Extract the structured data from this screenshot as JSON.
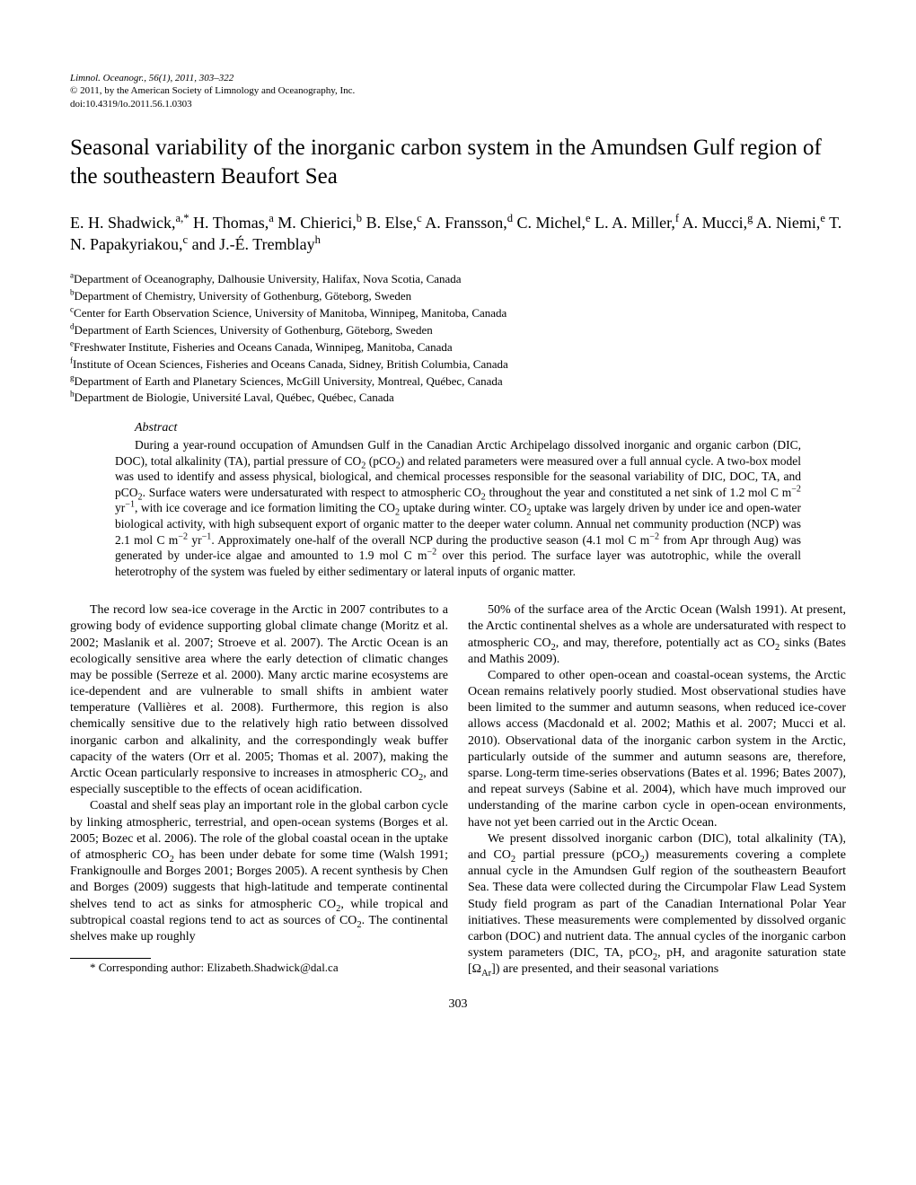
{
  "journal": {
    "citation": "Limnol. Oceanogr., 56(1), 2011, 303–322",
    "copyright": "© 2011, by the American Society of Limnology and Oceanography, Inc.",
    "doi": "doi:10.4319/lo.2011.56.1.0303"
  },
  "title": "Seasonal variability of the inorganic carbon system in the Amundsen Gulf region of the southeastern Beaufort Sea",
  "authors_html": "E. H. Shadwick,<span class='sup'>a,*</span> H. Thomas,<span class='sup'>a</span> M. Chierici,<span class='sup'>b</span> B. Else,<span class='sup'>c</span> A. Fransson,<span class='sup'>d</span> C. Michel,<span class='sup'>e</span> L. A. Miller,<span class='sup'>f</span> A. Mucci,<span class='sup'>g</span> A. Niemi,<span class='sup'>e</span> T. N. Papakyriakou,<span class='sup'>c</span> and J.-É. Tremblay<span class='sup'>h</span>",
  "affiliations": [
    {
      "sup": "a",
      "text": "Department of Oceanography, Dalhousie University, Halifax, Nova Scotia, Canada"
    },
    {
      "sup": "b",
      "text": "Department of Chemistry, University of Gothenburg, Göteborg, Sweden"
    },
    {
      "sup": "c",
      "text": "Center for Earth Observation Science, University of Manitoba, Winnipeg, Manitoba, Canada"
    },
    {
      "sup": "d",
      "text": "Department of Earth Sciences, University of Gothenburg, Göteborg, Sweden"
    },
    {
      "sup": "e",
      "text": "Freshwater Institute, Fisheries and Oceans Canada, Winnipeg, Manitoba, Canada"
    },
    {
      "sup": "f",
      "text": "Institute of Ocean Sciences, Fisheries and Oceans Canada, Sidney, British Columbia, Canada"
    },
    {
      "sup": "g",
      "text": "Department of Earth and Planetary Sciences, McGill University, Montreal, Québec, Canada"
    },
    {
      "sup": "h",
      "text": "Department de Biologie, Université Laval, Québec, Québec, Canada"
    }
  ],
  "abstract": {
    "heading": "Abstract",
    "body_html": "During a year-round occupation of Amundsen Gulf in the Canadian Arctic Archipelago dissolved inorganic and organic carbon (DIC, DOC), total alkalinity (TA), partial pressure of CO<span class='sub'>2</span> (pCO<span class='sub'>2</span>) and related parameters were measured over a full annual cycle. A two-box model was used to identify and assess physical, biological, and chemical processes responsible for the seasonal variability of DIC, DOC, TA, and pCO<span class='sub'>2</span>. Surface waters were undersaturated with respect to atmospheric CO<span class='sub'>2</span> throughout the year and constituted a net sink of 1.2 mol C m<span class='supm'>−2</span> yr<span class='supm'>−1</span>, with ice coverage and ice formation limiting the CO<span class='sub'>2</span> uptake during winter. CO<span class='sub'>2</span> uptake was largely driven by under ice and open-water biological activity, with high subsequent export of organic matter to the deeper water column. Annual net community production (NCP) was 2.1 mol C m<span class='supm'>−2</span> yr<span class='supm'>−1</span>. Approximately one-half of the overall NCP during the productive season (4.1 mol C m<span class='supm'>−2</span> from Apr through Aug) was generated by under-ice algae and amounted to 1.9 mol C m<span class='supm'>−2</span> over this period. The surface layer was autotrophic, while the overall heterotrophy of the system was fueled by either sedimentary or lateral inputs of organic matter."
  },
  "body": {
    "left": [
      "The record low sea-ice coverage in the Arctic in 2007 contributes to a growing body of evidence supporting global climate change (Moritz et al. 2002; Maslanik et al. 2007; Stroeve et al. 2007). The Arctic Ocean is an ecologically sensitive area where the early detection of climatic changes may be possible (Serreze et al. 2000). Many arctic marine ecosystems are ice-dependent and are vulnerable to small shifts in ambient water temperature (Vallières et al. 2008). Furthermore, this region is also chemically sensitive due to the relatively high ratio between dissolved inorganic carbon and alkalinity, and the correspondingly weak buffer capacity of the waters (Orr et al. 2005; Thomas et al. 2007), making the Arctic Ocean particularly responsive to increases in atmospheric CO<span class='sub'>2</span>, and especially susceptible to the effects of ocean acidification.",
      "Coastal and shelf seas play an important role in the global carbon cycle by linking atmospheric, terrestrial, and open-ocean systems (Borges et al. 2005; Bozec et al. 2006). The role of the global coastal ocean in the uptake of atmospheric CO<span class='sub'>2</span> has been under debate for some time (Walsh 1991; Frankignoulle and Borges 2001; Borges 2005). A recent synthesis by Chen and Borges (2009) suggests that high-latitude and temperate continental shelves tend to act as sinks for atmospheric CO<span class='sub'>2</span>, while tropical and subtropical coastal regions tend to act as sources of CO<span class='sub'>2</span>. The continental shelves make up roughly"
    ],
    "right": [
      "50% of the surface area of the Arctic Ocean (Walsh 1991). At present, the Arctic continental shelves as a whole are undersaturated with respect to atmospheric CO<span class='sub'>2</span>, and may, therefore, potentially act as CO<span class='sub'>2</span> sinks (Bates and Mathis 2009).",
      "Compared to other open-ocean and coastal-ocean systems, the Arctic Ocean remains relatively poorly studied. Most observational studies have been limited to the summer and autumn seasons, when reduced ice-cover allows access (Macdonald et al. 2002; Mathis et al. 2007; Mucci et al. 2010). Observational data of the inorganic carbon system in the Arctic, particularly outside of the summer and autumn seasons are, therefore, sparse. Long-term time-series observations (Bates et al. 1996; Bates 2007), and repeat surveys (Sabine et al. 2004), which have much improved our understanding of the marine carbon cycle in open-ocean environments, have not yet been carried out in the Arctic Ocean.",
      "We present dissolved inorganic carbon (DIC), total alkalinity (TA), and CO<span class='sub'>2</span> partial pressure (pCO<span class='sub'>2</span>) measurements covering a complete annual cycle in the Amundsen Gulf region of the southeastern Beaufort Sea. These data were collected during the Circumpolar Flaw Lead System Study field program as part of the Canadian International Polar Year initiatives. These measurements were complemented by dissolved organic carbon (DOC) and nutrient data. The annual cycles of the inorganic carbon system parameters (DIC, TA, pCO<span class='sub'>2</span>, pH, and aragonite saturation state [Ω<span class='sub'>Ar</span>]) are presented, and their seasonal variations"
    ]
  },
  "footnote": "* Corresponding author: Elizabeth.Shadwick@dal.ca",
  "page_number": "303"
}
